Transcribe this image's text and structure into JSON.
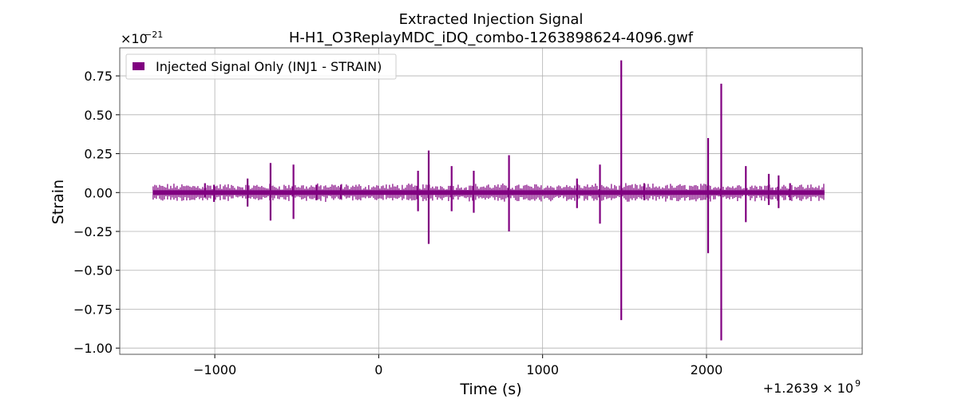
{
  "chart_data": {
    "type": "line",
    "title": "Extracted Injection Signal",
    "subtitle": "H-H1_O3ReplayMDC_iDQ_combo-1263898624-4096.gwf",
    "xlabel": "Time (s)",
    "ylabel": "Strain",
    "x_offset_label": "+1.2639 × 10",
    "x_offset_exponent": "9",
    "y_scale_label": "×10",
    "y_scale_exponent": "−21",
    "xlim": [
      -1580,
      2950
    ],
    "ylim": [
      -1.04,
      0.93
    ],
    "xticks": [
      -1000,
      0,
      1000,
      2000
    ],
    "xtick_labels": [
      "−1000",
      "0",
      "1000",
      "2000"
    ],
    "yticks": [
      0.75,
      0.5,
      0.25,
      0.0,
      -0.25,
      -0.5,
      -0.75,
      -1.0
    ],
    "ytick_labels": [
      "0.75",
      "0.50",
      "0.25",
      "0.00",
      "−0.25",
      "−0.50",
      "−0.75",
      "−1.00"
    ],
    "grid": true,
    "legend_position": "top-left",
    "color": "#800080",
    "series": [
      {
        "name": "Injected Signal Only (INJ1 - STRAIN)",
        "x_range": [
          -1376,
          2720
        ],
        "baseline_amplitude": 0.015,
        "spikes": [
          [
            -1060,
            0.06,
            -0.03
          ],
          [
            -1005,
            0.05,
            -0.06
          ],
          [
            -800,
            0.09,
            -0.09
          ],
          [
            -660,
            0.19,
            -0.18
          ],
          [
            -520,
            0.18,
            -0.17
          ],
          [
            -380,
            0.05,
            -0.05
          ],
          [
            -230,
            0.05,
            -0.04
          ],
          [
            240,
            0.14,
            -0.12
          ],
          [
            305,
            0.27,
            -0.33
          ],
          [
            445,
            0.17,
            -0.12
          ],
          [
            580,
            0.14,
            -0.13
          ],
          [
            795,
            0.24,
            -0.25
          ],
          [
            1210,
            0.09,
            -0.1
          ],
          [
            1350,
            0.18,
            -0.2
          ],
          [
            1480,
            0.85,
            -0.82
          ],
          [
            1620,
            0.06,
            -0.05
          ],
          [
            2010,
            0.35,
            -0.39
          ],
          [
            2090,
            0.7,
            -0.95
          ],
          [
            2240,
            0.17,
            -0.19
          ],
          [
            2380,
            0.12,
            -0.08
          ],
          [
            2440,
            0.11,
            -0.1
          ],
          [
            2510,
            0.06,
            -0.05
          ]
        ]
      }
    ]
  }
}
